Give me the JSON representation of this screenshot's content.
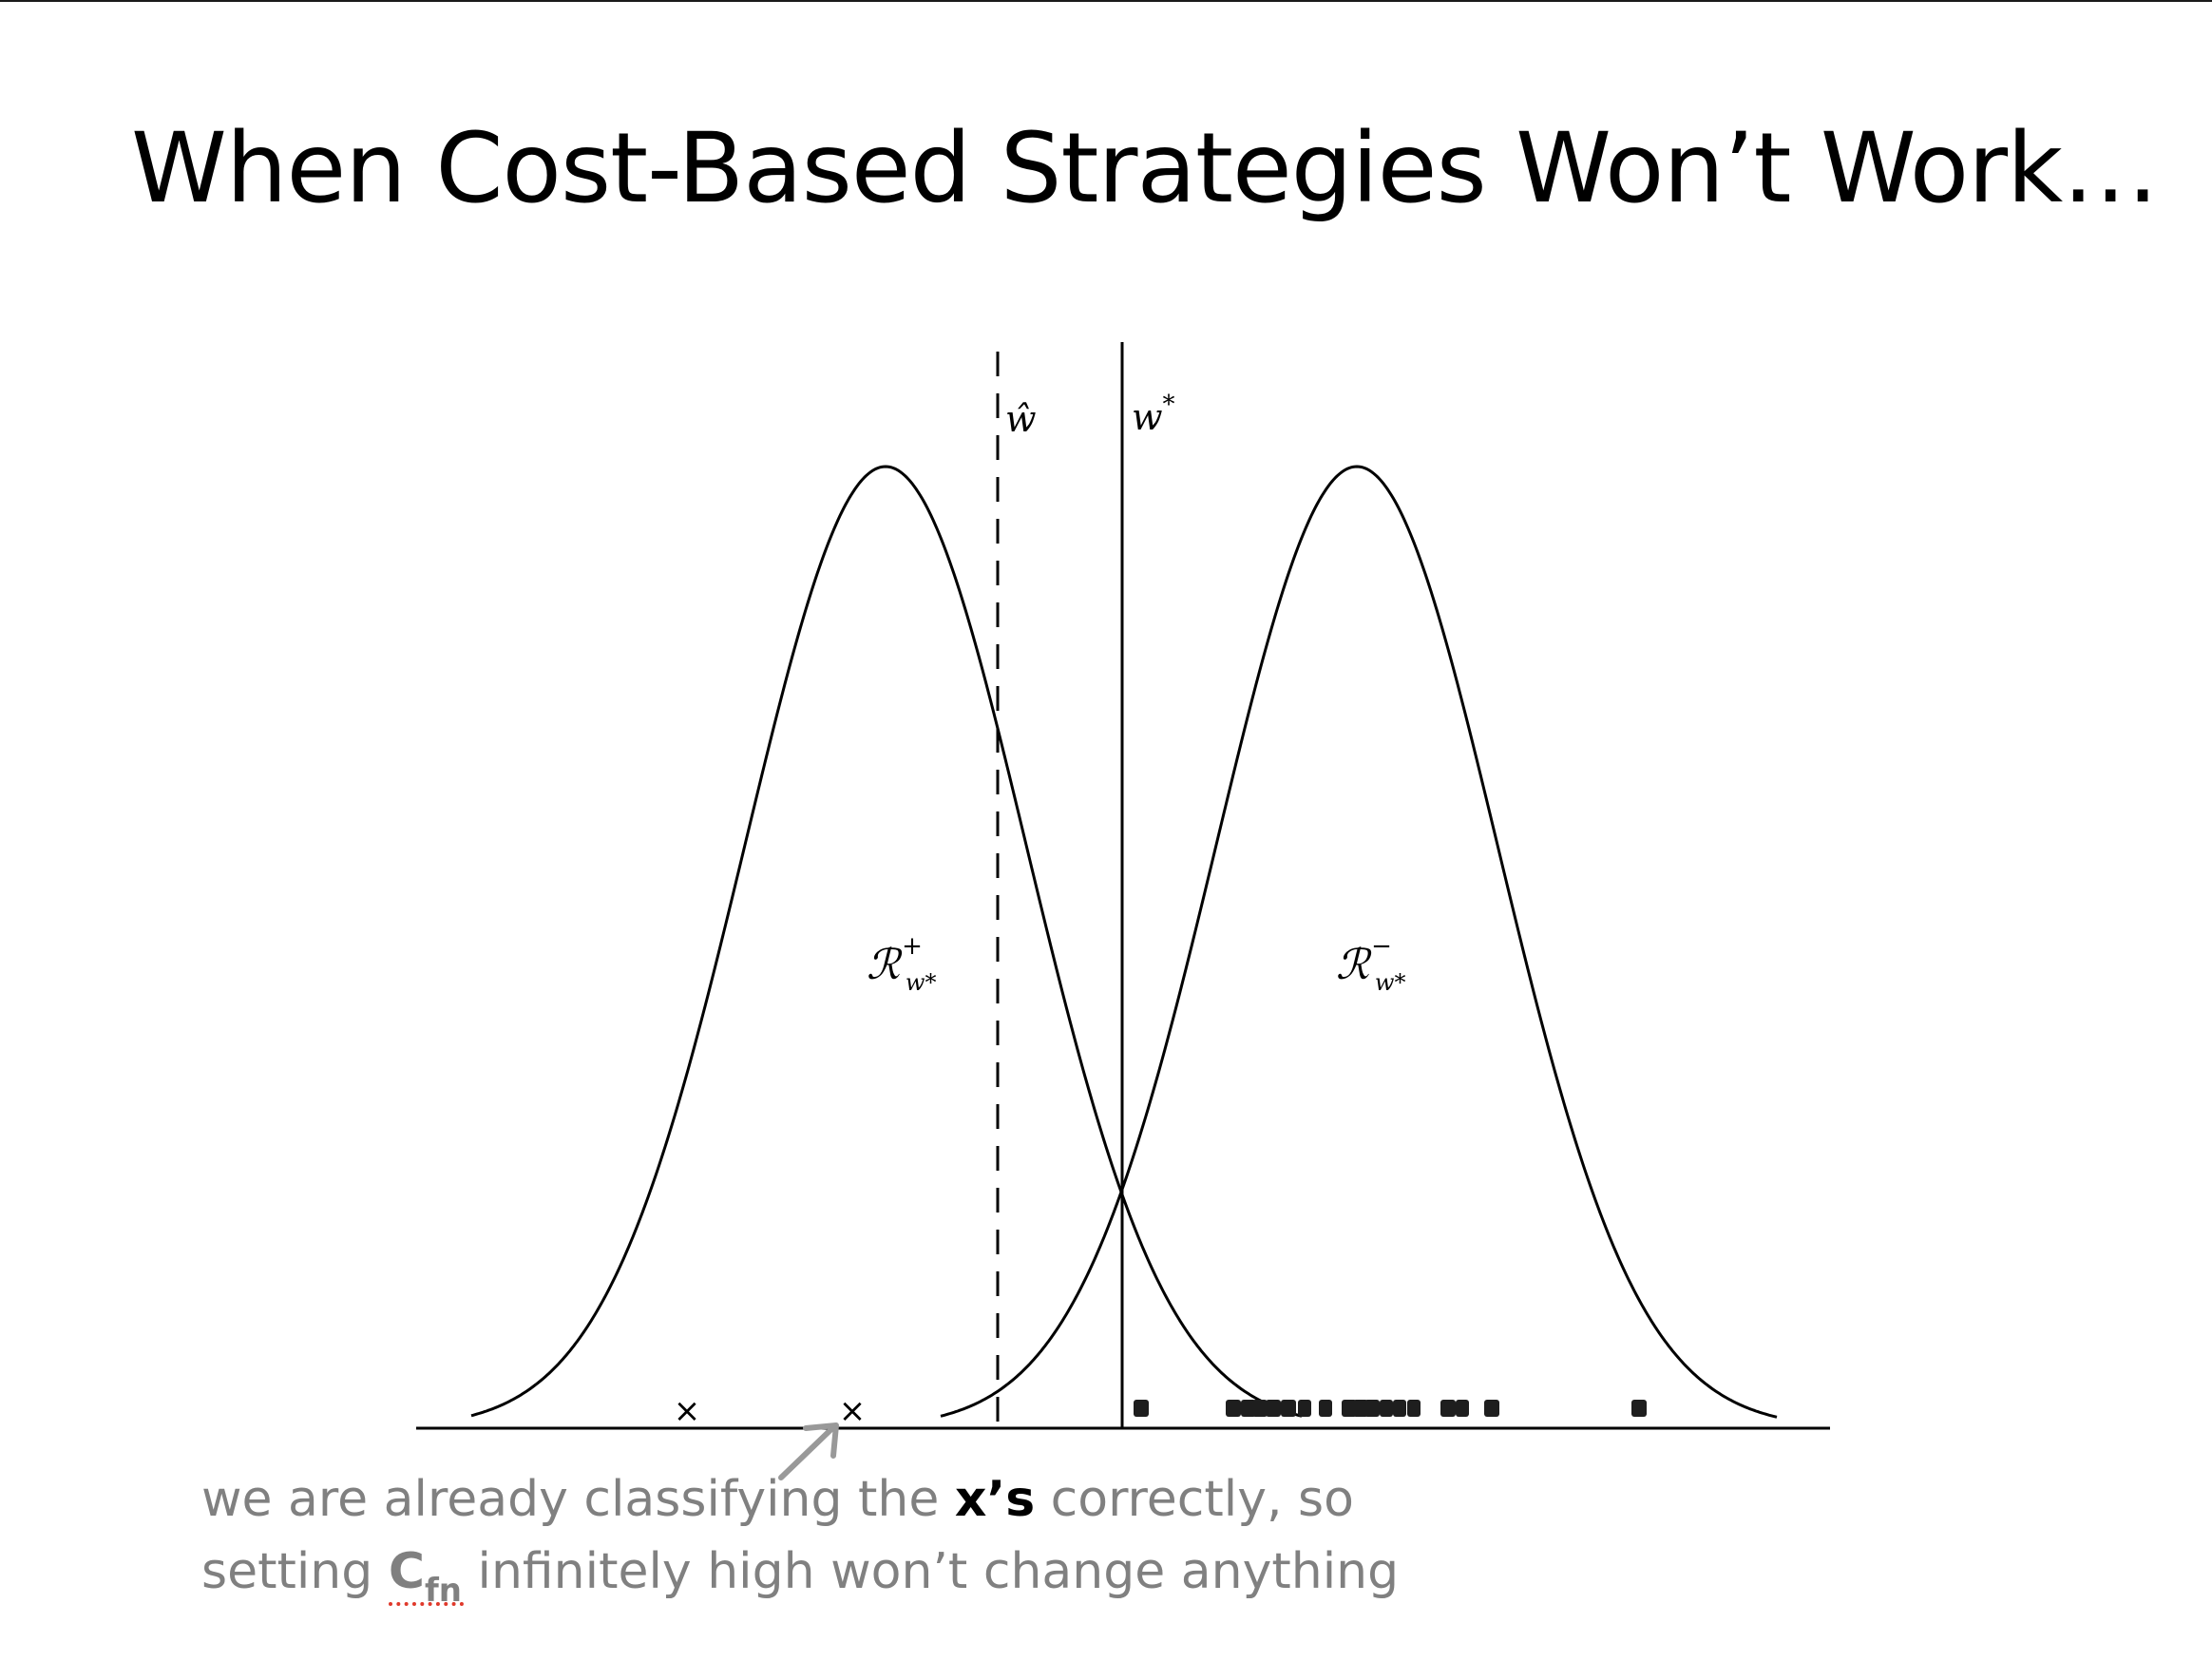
{
  "slide": {
    "title": "When Cost-Based Strategies Won’t Work…"
  },
  "diagram": {
    "labels": {
      "w_hat": "ŵ",
      "w_star_base": "w",
      "w_star_sup": "*",
      "region_pos_base": "ℛ",
      "region_pos_sup": "+",
      "region_pos_sub": "w*",
      "region_neg_base": "ℛ",
      "region_neg_sup": "−",
      "region_neg_sub": "w*"
    },
    "marker_x": "×",
    "colors": {
      "curve": "#000000",
      "caption": "#808080",
      "arrow": "#999999",
      "squiggle": "#e0392b"
    }
  },
  "caption": {
    "line1_pre": "we are already classifying the ",
    "line1_bold": "x’s",
    "line1_post": " correctly, so",
    "line2_pre": "setting ",
    "cost_base": "C",
    "cost_sub": "fn",
    "line2_post": " infinitely high won’t change anything"
  }
}
